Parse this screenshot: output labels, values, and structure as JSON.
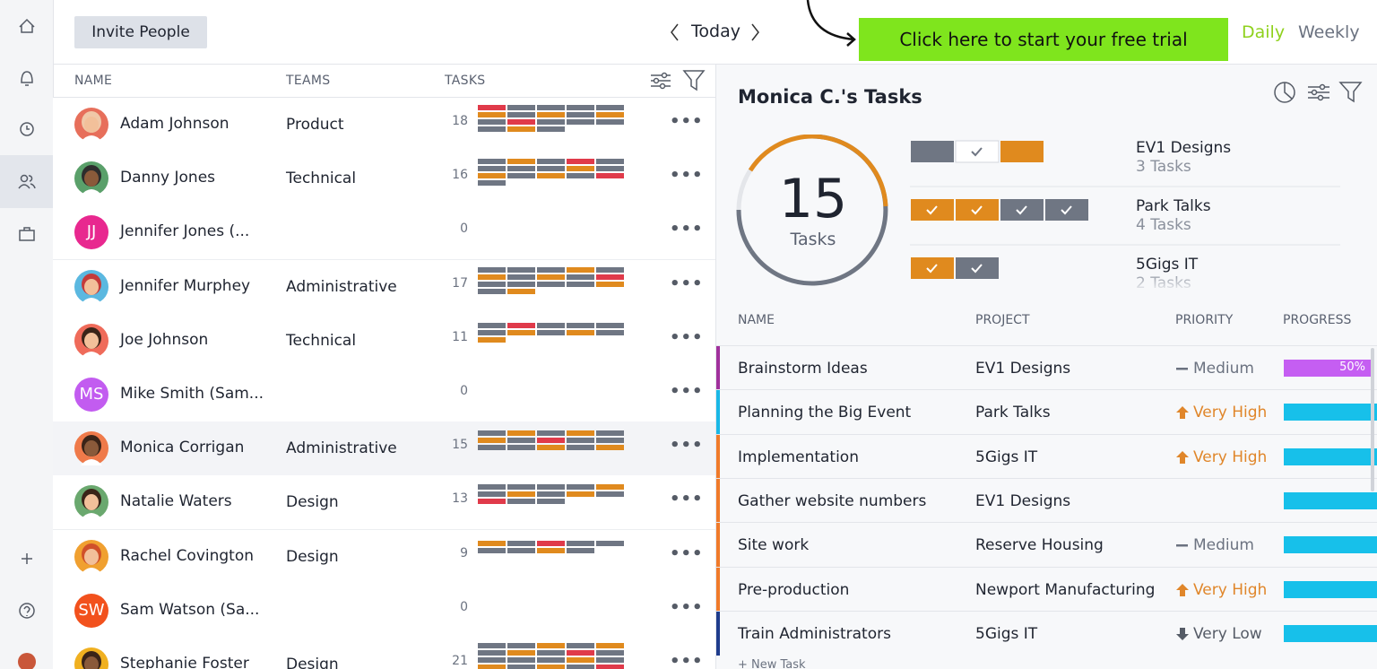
{
  "toolbar": {
    "invite_button": "Invite People",
    "date_nav": "Today",
    "cta": "Click here to start your free trial",
    "views": [
      "Daily",
      "Weekly"
    ]
  },
  "people_table": {
    "columns": [
      "NAME",
      "TEAMS",
      "TASKS"
    ],
    "rows": [
      {
        "name": "Adam Johnson",
        "team": "Product",
        "tasks": 18
      },
      {
        "name": "Danny Jones",
        "team": "Technical",
        "tasks": 16
      },
      {
        "name": "Jennifer Jones (...",
        "initials": "JJ",
        "tasks": 0
      },
      {
        "name": "Jennifer Murphey",
        "team": "Administrative",
        "tasks": 17
      },
      {
        "name": "Joe Johnson",
        "team": "Technical",
        "tasks": 11
      },
      {
        "name": "Mike Smith (Sam...",
        "initials": "MS",
        "tasks": 0
      },
      {
        "name": "Monica Corrigan",
        "team": "Administrative",
        "tasks": 15
      },
      {
        "name": "Natalie Waters",
        "team": "Design",
        "tasks": 13
      },
      {
        "name": "Rachel Covington",
        "team": "Design",
        "tasks": 9
      },
      {
        "name": "Sam Watson (Sa...",
        "initials": "SW",
        "tasks": 0
      },
      {
        "name": "Stephanie Foster",
        "team": "Design",
        "tasks": 21
      }
    ]
  },
  "detail": {
    "title": "Monica C.'s Tasks",
    "total": 15,
    "total_label": "Tasks",
    "projects": [
      {
        "name": "EV1 Designs",
        "count": "3 Tasks"
      },
      {
        "name": "Park Talks",
        "count": "4 Tasks"
      },
      {
        "name": "5Gigs IT",
        "count": "2 Tasks"
      }
    ],
    "task_columns": [
      "NAME",
      "PROJECT",
      "PRIORITY",
      "PROGRESS"
    ],
    "tasks": [
      {
        "name": "Brainstorm Ideas",
        "project": "EV1 Designs",
        "priority": "Medium",
        "progress": {
          "value": 50,
          "label": "50%"
        }
      },
      {
        "name": "Planning the Big Event",
        "project": "Park Talks",
        "priority": "Very High"
      },
      {
        "name": "Implementation",
        "project": "5Gigs IT",
        "priority": "Very High"
      },
      {
        "name": "Gather website numbers",
        "project": "EV1 Designs"
      },
      {
        "name": "Site work",
        "project": "Reserve Housing",
        "priority": "Medium"
      },
      {
        "name": "Pre-production",
        "project": "Newport Manufacturing",
        "priority": "Very High"
      },
      {
        "name": "Train Administrators",
        "project": "5Gigs IT",
        "priority": "Very Low"
      }
    ],
    "new_task": "+ New Task"
  }
}
